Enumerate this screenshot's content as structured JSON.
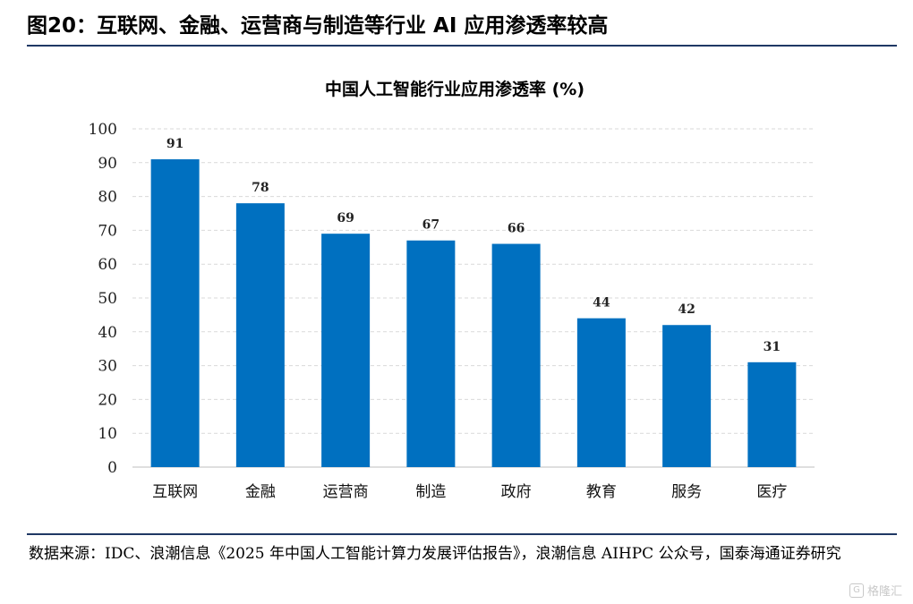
{
  "figure": {
    "title": "图20：互联网、金融、运营商与制造等行业 AI 应用渗透率较高",
    "source": "数据来源：IDC、浪潮信息《2025 年中国人工智能计算力发展评估报告》，浪潮信息 AIHPC 公众号，国泰海通证券研究"
  },
  "watermark": {
    "label": "格隆汇"
  },
  "colors": {
    "bar": "#0070c0",
    "grid": "#d9d9d9",
    "rule": "#1f3864"
  },
  "chart_data": {
    "type": "bar",
    "title": "中国人工智能行业应用渗透率 (%)",
    "categories": [
      "互联网",
      "金融",
      "运营商",
      "制造",
      "政府",
      "教育",
      "服务",
      "医疗"
    ],
    "values": [
      91,
      78,
      69,
      67,
      66,
      44,
      42,
      31
    ],
    "ylim": [
      0,
      100
    ],
    "yticks": [
      0,
      10,
      20,
      30,
      40,
      50,
      60,
      70,
      80,
      90,
      100
    ],
    "xlabel": "",
    "ylabel": "",
    "grid": "horizontal-dashed"
  }
}
